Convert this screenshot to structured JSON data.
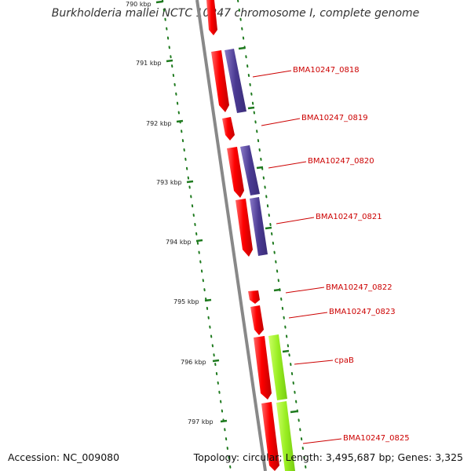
{
  "title": "Burkholderia mallei NCTC 10247 chromosome I, complete genome",
  "footer": {
    "accession": "Accession: NC_009080",
    "summary": "Topology: circular; Length: 3,495,687 bp; Genes: 3,325"
  },
  "colors": {
    "backbone": "#888888",
    "tick": "#1e7a1e",
    "cds": "#ee0000",
    "gene": "#5b4a9a",
    "cpa": "#99ee22",
    "label": "#cc0000"
  },
  "map": {
    "kbp_labels": [
      "790 kbp",
      "791 kbp",
      "792 kbp",
      "793 kbp",
      "794 kbp",
      "795 kbp",
      "796 kbp",
      "797 kbp"
    ],
    "gene_labels": [
      "BMA10247_0818",
      "BMA10247_0819",
      "BMA10247_0820",
      "BMA10247_0821",
      "BMA10247_0822",
      "BMA10247_0823",
      "cpaB",
      "BMA10247_0825"
    ]
  }
}
